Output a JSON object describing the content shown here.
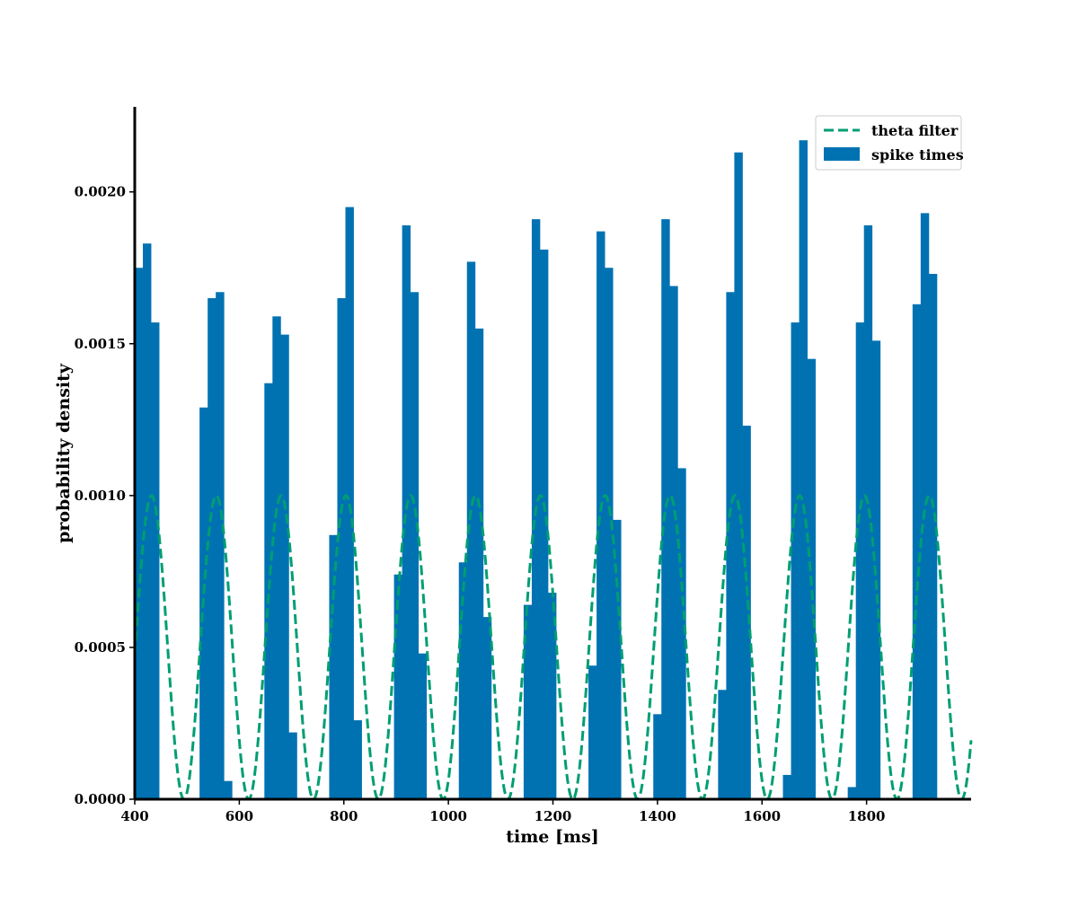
{
  "chart_data": {
    "type": "bar",
    "title": "",
    "xlabel": "time [ms]",
    "ylabel": "probability density",
    "xlim": [
      400,
      2000
    ],
    "ylim": [
      0,
      0.00228
    ],
    "x_ticks": [
      "400",
      "600",
      "800",
      "1000",
      "1200",
      "1400",
      "1600",
      "1800"
    ],
    "x_tick_values": [
      400,
      600,
      800,
      1000,
      1200,
      1400,
      1600,
      1800
    ],
    "y_ticks": [
      "0.0000",
      "0.0005",
      "0.0010",
      "0.0015",
      "0.0020"
    ],
    "y_tick_values": [
      0,
      0.0005,
      0.001,
      0.0015,
      0.002
    ],
    "grid": false,
    "legend_position": "top-right",
    "colors": {
      "histogram": "#0072B2",
      "filter": "#009E73"
    },
    "series": [
      {
        "name": "theta filter",
        "kind": "dashed-line",
        "function": "0.0005*(1+cos(2*pi*(t-432)/124))",
        "amplitude": 0.0005,
        "offset": 0.0005,
        "period_ms": 124,
        "peak_ms": 432
      },
      {
        "name": "spike times",
        "kind": "histogram",
        "bin_width_ms": 15.5,
        "bins": [
          {
            "x": 407.75,
            "y": 0.00175
          },
          {
            "x": 423.25,
            "y": 0.00183
          },
          {
            "x": 438.75,
            "y": 0.00157
          },
          {
            "x": 531.75,
            "y": 0.00129
          },
          {
            "x": 547.25,
            "y": 0.00165
          },
          {
            "x": 562.75,
            "y": 0.00167
          },
          {
            "x": 578.25,
            "y": 6e-05
          },
          {
            "x": 655.75,
            "y": 0.00137
          },
          {
            "x": 671.25,
            "y": 0.00159
          },
          {
            "x": 686.75,
            "y": 0.00153
          },
          {
            "x": 702.25,
            "y": 0.00022
          },
          {
            "x": 779.75,
            "y": 0.00087
          },
          {
            "x": 795.25,
            "y": 0.00165
          },
          {
            "x": 810.75,
            "y": 0.00195
          },
          {
            "x": 826.25,
            "y": 0.00026
          },
          {
            "x": 903.75,
            "y": 0.00074
          },
          {
            "x": 919.25,
            "y": 0.00189
          },
          {
            "x": 934.75,
            "y": 0.00167
          },
          {
            "x": 950.25,
            "y": 0.00048
          },
          {
            "x": 1027.75,
            "y": 0.00078
          },
          {
            "x": 1043.25,
            "y": 0.00177
          },
          {
            "x": 1058.75,
            "y": 0.00155
          },
          {
            "x": 1074.25,
            "y": 0.0006
          },
          {
            "x": 1151.75,
            "y": 0.00064
          },
          {
            "x": 1167.25,
            "y": 0.00191
          },
          {
            "x": 1182.75,
            "y": 0.00181
          },
          {
            "x": 1198.25,
            "y": 0.00068
          },
          {
            "x": 1275.75,
            "y": 0.00044
          },
          {
            "x": 1291.25,
            "y": 0.00187
          },
          {
            "x": 1306.75,
            "y": 0.00175
          },
          {
            "x": 1322.25,
            "y": 0.00092
          },
          {
            "x": 1399.75,
            "y": 0.00028
          },
          {
            "x": 1415.25,
            "y": 0.00191
          },
          {
            "x": 1430.75,
            "y": 0.00169
          },
          {
            "x": 1446.25,
            "y": 0.00109
          },
          {
            "x": 1523.75,
            "y": 0.00036
          },
          {
            "x": 1539.25,
            "y": 0.00167
          },
          {
            "x": 1554.75,
            "y": 0.00213
          },
          {
            "x": 1570.25,
            "y": 0.00123
          },
          {
            "x": 1647.75,
            "y": 8e-05
          },
          {
            "x": 1663.25,
            "y": 0.00157
          },
          {
            "x": 1678.75,
            "y": 0.00217
          },
          {
            "x": 1694.25,
            "y": 0.00145
          },
          {
            "x": 1771.75,
            "y": 4e-05
          },
          {
            "x": 1787.25,
            "y": 0.00157
          },
          {
            "x": 1802.75,
            "y": 0.00189
          },
          {
            "x": 1818.25,
            "y": 0.00151
          },
          {
            "x": 1895.75,
            "y": 0.00163
          },
          {
            "x": 1911.25,
            "y": 0.00193
          },
          {
            "x": 1926.75,
            "y": 0.00173
          }
        ]
      }
    ]
  }
}
